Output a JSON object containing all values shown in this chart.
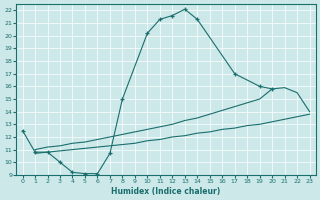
{
  "xlabel": "Humidex (Indice chaleur)",
  "xlim": [
    -0.5,
    23.5
  ],
  "ylim": [
    9,
    22.5
  ],
  "yticks": [
    9,
    10,
    11,
    12,
    13,
    14,
    15,
    16,
    17,
    18,
    19,
    20,
    21,
    22
  ],
  "xticks": [
    0,
    1,
    2,
    3,
    4,
    5,
    6,
    7,
    8,
    9,
    10,
    11,
    12,
    13,
    14,
    15,
    16,
    17,
    18,
    19,
    20,
    21,
    22,
    23
  ],
  "bg_color": "#cce8e8",
  "line_color": "#1a6e6e",
  "curve1_x": [
    0,
    1,
    2,
    3,
    4,
    5,
    6,
    7,
    8,
    10,
    11,
    12,
    13,
    14,
    17,
    19,
    20
  ],
  "curve1_y": [
    12.5,
    10.8,
    10.8,
    10.0,
    9.2,
    9.1,
    9.1,
    10.7,
    15.0,
    20.2,
    21.3,
    21.6,
    22.1,
    21.3,
    17.0,
    16.0,
    15.8
  ],
  "curve2_x": [
    1,
    2,
    3,
    4,
    5,
    6,
    7,
    8,
    9,
    10,
    11,
    12,
    13,
    14,
    15,
    16,
    17,
    18,
    19,
    20,
    21,
    22,
    23
  ],
  "curve2_y": [
    11.0,
    11.2,
    11.3,
    11.5,
    11.6,
    11.8,
    12.0,
    12.2,
    12.4,
    12.6,
    12.8,
    13.0,
    13.3,
    13.5,
    13.8,
    14.1,
    14.4,
    14.7,
    15.0,
    15.8,
    15.9,
    15.5,
    14.0
  ],
  "curve3_x": [
    1,
    2,
    3,
    4,
    5,
    6,
    7,
    8,
    9,
    10,
    11,
    12,
    13,
    14,
    15,
    16,
    17,
    18,
    19,
    20,
    21,
    22,
    23
  ],
  "curve3_y": [
    10.7,
    10.8,
    10.9,
    11.0,
    11.1,
    11.2,
    11.3,
    11.4,
    11.5,
    11.7,
    11.8,
    12.0,
    12.1,
    12.3,
    12.4,
    12.6,
    12.7,
    12.9,
    13.0,
    13.2,
    13.4,
    13.6,
    13.8
  ]
}
